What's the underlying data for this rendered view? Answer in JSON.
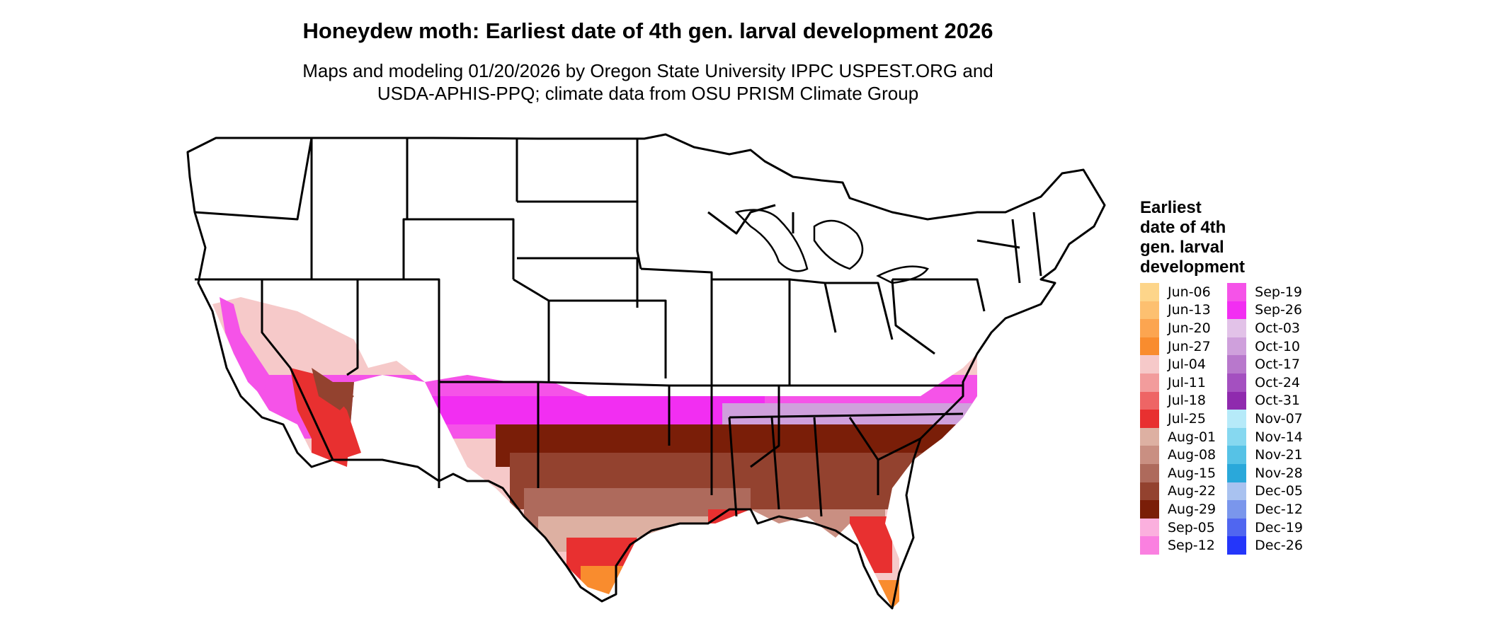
{
  "title": "Honeydew moth: Earliest date of 4th gen. larval development 2026",
  "subtitle": [
    "Maps and modeling 01/20/2026 by Oregon State University IPPC USPEST.ORG and",
    "USDA-APHIS-PPQ; climate data from OSU PRISM Climate Group"
  ],
  "legend": {
    "title": [
      "Earliest",
      "date of 4th",
      "gen. larval",
      "development"
    ],
    "columns": [
      [
        {
          "label": "Jun-06",
          "color": "#FDD58A"
        },
        {
          "label": "Jun-13",
          "color": "#FDC070"
        },
        {
          "label": "Jun-20",
          "color": "#FCA550"
        },
        {
          "label": "Jun-27",
          "color": "#F98C2E"
        },
        {
          "label": "Jul-04",
          "color": "#F6C9C9"
        },
        {
          "label": "Jul-11",
          "color": "#F29C9C"
        },
        {
          "label": "Jul-18",
          "color": "#EE6565"
        },
        {
          "label": "Jul-25",
          "color": "#E83030"
        },
        {
          "label": "Aug-01",
          "color": "#DDB0A2"
        },
        {
          "label": "Aug-08",
          "color": "#C98F82"
        },
        {
          "label": "Aug-15",
          "color": "#AE6A5C"
        },
        {
          "label": "Aug-22",
          "color": "#93422F"
        },
        {
          "label": "Aug-29",
          "color": "#7A1E08"
        },
        {
          "label": "Sep-05",
          "color": "#FBB0DE"
        },
        {
          "label": "Sep-12",
          "color": "#FA80E0"
        }
      ],
      [
        {
          "label": "Sep-19",
          "color": "#F553E8"
        },
        {
          "label": "Sep-26",
          "color": "#F22EF2"
        },
        {
          "label": "Oct-03",
          "color": "#E2C2E8"
        },
        {
          "label": "Oct-10",
          "color": "#CFA0DC"
        },
        {
          "label": "Oct-17",
          "color": "#B878CC"
        },
        {
          "label": "Oct-24",
          "color": "#A450C0"
        },
        {
          "label": "Oct-31",
          "color": "#8F2AAE"
        },
        {
          "label": "Nov-07",
          "color": "#B6EAF9"
        },
        {
          "label": "Nov-14",
          "color": "#86D8F0"
        },
        {
          "label": "Nov-21",
          "color": "#56C2E6"
        },
        {
          "label": "Nov-28",
          "color": "#2AA8DA"
        },
        {
          "label": "Dec-05",
          "color": "#A9C2F0"
        },
        {
          "label": "Dec-12",
          "color": "#7A96EC"
        },
        {
          "label": "Dec-19",
          "color": "#5066F0"
        },
        {
          "label": "Dec-26",
          "color": "#2436FA"
        }
      ]
    ]
  },
  "map": {
    "outline_color": "#000000"
  }
}
